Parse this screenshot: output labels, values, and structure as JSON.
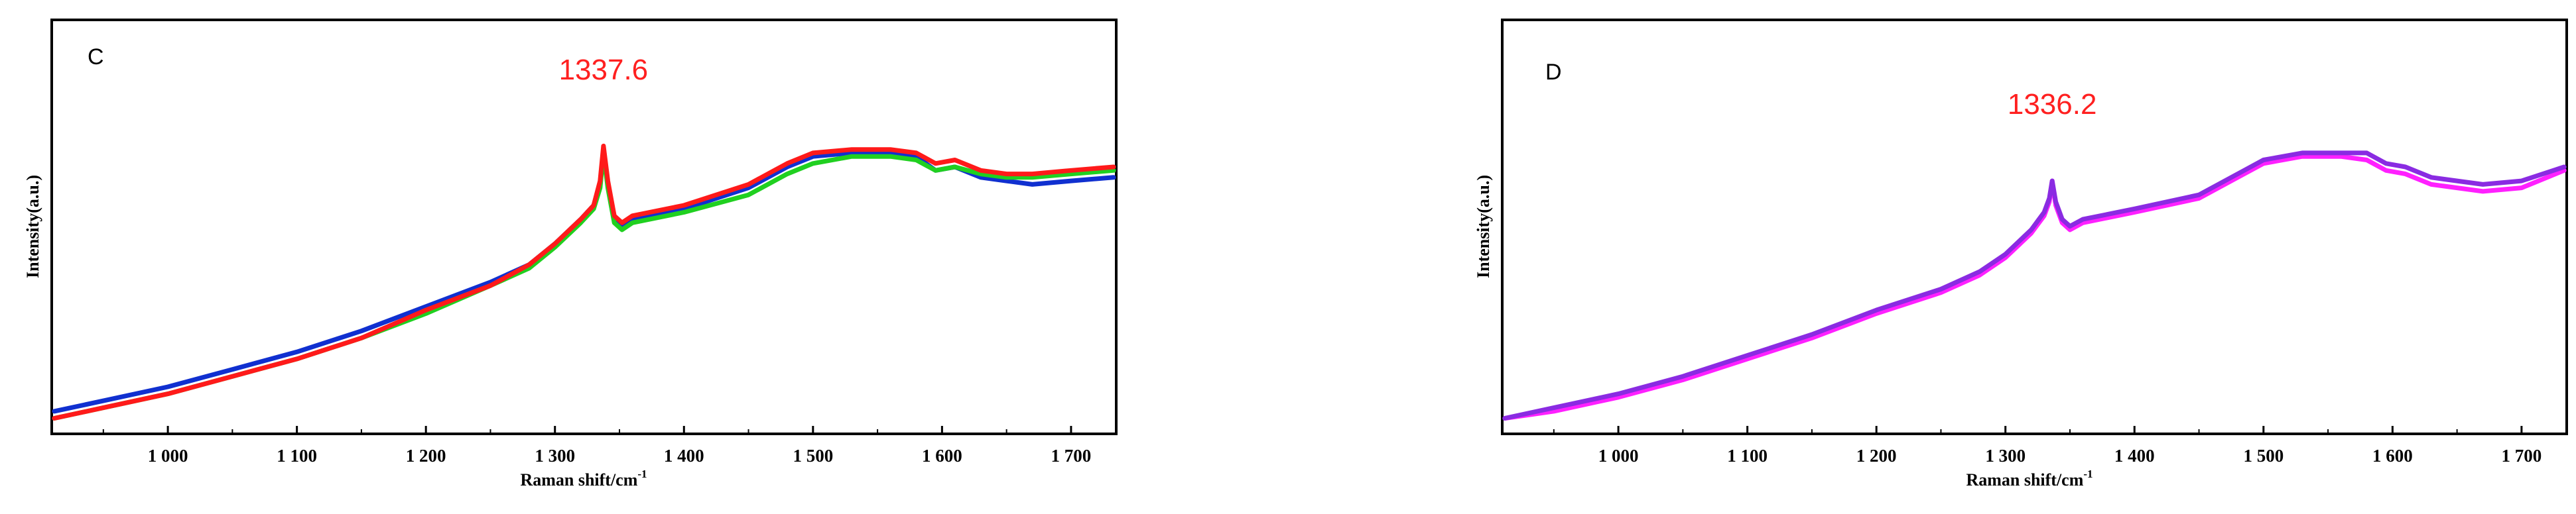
{
  "chart_data": [
    {
      "type": "line",
      "panel_label": "C",
      "xlabel": "Raman shift/cm",
      "xlabel_superscript": "-1",
      "ylabel": "Intensity(a.u.)",
      "xlim": [
        910,
        1735
      ],
      "ylim": [
        0,
        1
      ],
      "x_ticks": [
        1000,
        1100,
        1200,
        1300,
        1400,
        1500,
        1600,
        1700
      ],
      "x_tick_labels": [
        "1 000",
        "1 100",
        "1 200",
        "1 300",
        "1 400",
        "1 500",
        "1 600",
        "1 700"
      ],
      "y_ticks_labeled": false,
      "grid": false,
      "peak_annotation": {
        "x": 1337.6,
        "text": "1337.6",
        "color": "#ff2020"
      },
      "series": [
        {
          "color": "#1030d0",
          "points": [
            [
              912,
              0.04
            ],
            [
              950,
              0.07
            ],
            [
              1000,
              0.11
            ],
            [
              1050,
              0.16
            ],
            [
              1100,
              0.21
            ],
            [
              1150,
              0.27
            ],
            [
              1200,
              0.34
            ],
            [
              1250,
              0.41
            ],
            [
              1280,
              0.46
            ],
            [
              1300,
              0.52
            ],
            [
              1320,
              0.59
            ],
            [
              1330,
              0.63
            ],
            [
              1335,
              0.69
            ],
            [
              1337.6,
              0.78
            ],
            [
              1341,
              0.69
            ],
            [
              1346,
              0.59
            ],
            [
              1352,
              0.57
            ],
            [
              1360,
              0.59
            ],
            [
              1400,
              0.62
            ],
            [
              1450,
              0.68
            ],
            [
              1480,
              0.74
            ],
            [
              1500,
              0.77
            ],
            [
              1530,
              0.78
            ],
            [
              1560,
              0.78
            ],
            [
              1580,
              0.77
            ],
            [
              1595,
              0.73
            ],
            [
              1610,
              0.74
            ],
            [
              1630,
              0.71
            ],
            [
              1650,
              0.7
            ],
            [
              1670,
              0.69
            ],
            [
              1700,
              0.7
            ],
            [
              1733,
              0.71
            ]
          ]
        },
        {
          "color": "#20d020",
          "points": [
            [
              912,
              0.02
            ],
            [
              950,
              0.05
            ],
            [
              1000,
              0.09
            ],
            [
              1050,
              0.14
            ],
            [
              1100,
              0.19
            ],
            [
              1150,
              0.25
            ],
            [
              1200,
              0.32
            ],
            [
              1250,
              0.4
            ],
            [
              1280,
              0.45
            ],
            [
              1300,
              0.51
            ],
            [
              1320,
              0.58
            ],
            [
              1330,
              0.62
            ],
            [
              1335,
              0.68
            ],
            [
              1337.6,
              0.78
            ],
            [
              1341,
              0.68
            ],
            [
              1346,
              0.58
            ],
            [
              1352,
              0.56
            ],
            [
              1360,
              0.58
            ],
            [
              1400,
              0.61
            ],
            [
              1450,
              0.66
            ],
            [
              1480,
              0.72
            ],
            [
              1500,
              0.75
            ],
            [
              1530,
              0.77
            ],
            [
              1560,
              0.77
            ],
            [
              1580,
              0.76
            ],
            [
              1595,
              0.73
            ],
            [
              1610,
              0.74
            ],
            [
              1630,
              0.72
            ],
            [
              1650,
              0.71
            ],
            [
              1670,
              0.71
            ],
            [
              1700,
              0.72
            ],
            [
              1733,
              0.73
            ]
          ]
        },
        {
          "color": "#ff1a1a",
          "points": [
            [
              912,
              0.02
            ],
            [
              950,
              0.05
            ],
            [
              1000,
              0.09
            ],
            [
              1050,
              0.14
            ],
            [
              1100,
              0.19
            ],
            [
              1150,
              0.25
            ],
            [
              1200,
              0.33
            ],
            [
              1250,
              0.4
            ],
            [
              1280,
              0.46
            ],
            [
              1300,
              0.52
            ],
            [
              1320,
              0.59
            ],
            [
              1330,
              0.63
            ],
            [
              1335,
              0.7
            ],
            [
              1337.6,
              0.8
            ],
            [
              1341,
              0.7
            ],
            [
              1346,
              0.6
            ],
            [
              1352,
              0.58
            ],
            [
              1360,
              0.6
            ],
            [
              1400,
              0.63
            ],
            [
              1450,
              0.69
            ],
            [
              1480,
              0.75
            ],
            [
              1500,
              0.78
            ],
            [
              1530,
              0.79
            ],
            [
              1560,
              0.79
            ],
            [
              1580,
              0.78
            ],
            [
              1595,
              0.75
            ],
            [
              1610,
              0.76
            ],
            [
              1630,
              0.73
            ],
            [
              1650,
              0.72
            ],
            [
              1670,
              0.72
            ],
            [
              1700,
              0.73
            ],
            [
              1733,
              0.74
            ]
          ]
        }
      ]
    },
    {
      "type": "line",
      "panel_label": "D",
      "xlabel": "Raman shift/cm",
      "xlabel_superscript": "-1",
      "ylabel": "Intensity(a.u.)",
      "xlim": [
        910,
        1735
      ],
      "ylim": [
        0,
        1
      ],
      "x_ticks": [
        1000,
        1100,
        1200,
        1300,
        1400,
        1500,
        1600,
        1700
      ],
      "x_tick_labels": [
        "1 000",
        "1 100",
        "1 200",
        "1 300",
        "1 400",
        "1 500",
        "1 600",
        "1 700"
      ],
      "y_ticks_labeled": false,
      "grid": false,
      "peak_annotation": {
        "x": 1336.2,
        "text": "1336.2",
        "color": "#ff2020"
      },
      "series": [
        {
          "color": "#ff20ff",
          "points": [
            [
              912,
              0.02
            ],
            [
              950,
              0.04
            ],
            [
              1000,
              0.08
            ],
            [
              1050,
              0.13
            ],
            [
              1100,
              0.19
            ],
            [
              1150,
              0.25
            ],
            [
              1200,
              0.32
            ],
            [
              1250,
              0.38
            ],
            [
              1280,
              0.43
            ],
            [
              1300,
              0.48
            ],
            [
              1320,
              0.55
            ],
            [
              1330,
              0.6
            ],
            [
              1334,
              0.64
            ],
            [
              1336.2,
              0.7
            ],
            [
              1339,
              0.63
            ],
            [
              1344,
              0.58
            ],
            [
              1350,
              0.56
            ],
            [
              1360,
              0.58
            ],
            [
              1400,
              0.61
            ],
            [
              1450,
              0.65
            ],
            [
              1480,
              0.71
            ],
            [
              1500,
              0.75
            ],
            [
              1530,
              0.77
            ],
            [
              1560,
              0.77
            ],
            [
              1580,
              0.76
            ],
            [
              1595,
              0.73
            ],
            [
              1610,
              0.72
            ],
            [
              1630,
              0.69
            ],
            [
              1650,
              0.68
            ],
            [
              1670,
              0.67
            ],
            [
              1700,
              0.68
            ],
            [
              1733,
              0.73
            ]
          ]
        },
        {
          "color": "#8a2be2",
          "points": [
            [
              912,
              0.02
            ],
            [
              950,
              0.05
            ],
            [
              1000,
              0.09
            ],
            [
              1050,
              0.14
            ],
            [
              1100,
              0.2
            ],
            [
              1150,
              0.26
            ],
            [
              1200,
              0.33
            ],
            [
              1250,
              0.39
            ],
            [
              1280,
              0.44
            ],
            [
              1300,
              0.49
            ],
            [
              1320,
              0.56
            ],
            [
              1330,
              0.61
            ],
            [
              1334,
              0.65
            ],
            [
              1336.2,
              0.7
            ],
            [
              1339,
              0.64
            ],
            [
              1344,
              0.59
            ],
            [
              1350,
              0.57
            ],
            [
              1360,
              0.59
            ],
            [
              1400,
              0.62
            ],
            [
              1450,
              0.66
            ],
            [
              1480,
              0.72
            ],
            [
              1500,
              0.76
            ],
            [
              1530,
              0.78
            ],
            [
              1560,
              0.78
            ],
            [
              1580,
              0.78
            ],
            [
              1595,
              0.75
            ],
            [
              1610,
              0.74
            ],
            [
              1630,
              0.71
            ],
            [
              1650,
              0.7
            ],
            [
              1670,
              0.69
            ],
            [
              1700,
              0.7
            ],
            [
              1733,
              0.74
            ]
          ]
        }
      ]
    }
  ]
}
